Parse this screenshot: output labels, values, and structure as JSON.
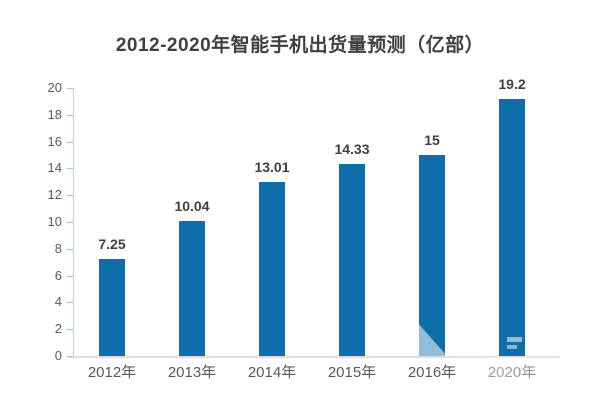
{
  "chart_data": {
    "type": "bar",
    "title": "2012-2020年智能手机出货量预测（亿部）",
    "categories": [
      "2012年",
      "2013年",
      "2014年",
      "2015年",
      "2016年",
      "2020年"
    ],
    "values": [
      7.25,
      10.04,
      13.01,
      14.33,
      15,
      19.2
    ],
    "value_labels": [
      "7.25",
      "10.04",
      "13.01",
      "14.33",
      "15",
      "19.2"
    ],
    "xlabel": "",
    "ylabel": "",
    "ylim": [
      0,
      20
    ],
    "yticks": [
      0,
      2,
      4,
      6,
      8,
      10,
      12,
      14,
      16,
      18,
      20
    ],
    "grid": false,
    "legend": false,
    "bar_color": "#0e6ea9",
    "axis_color": "#b5cbdc",
    "baseline_color": "#dedede",
    "title_color": "#3f3f3f",
    "value_label_color": "#3f3f3f",
    "tick_label_color": "#5a5a5a"
  }
}
